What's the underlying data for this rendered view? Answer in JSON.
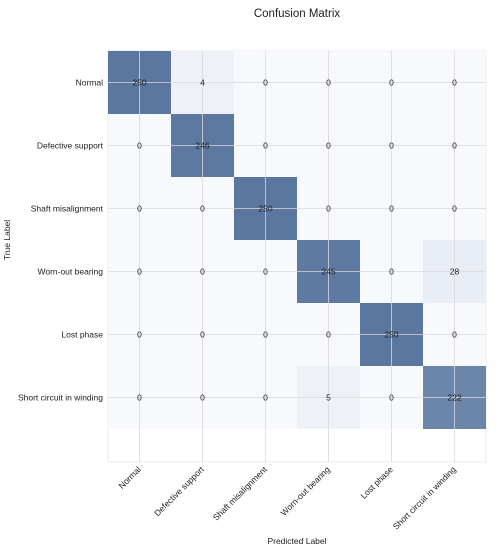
{
  "chart_data": {
    "type": "heatmap",
    "title": "Confusion Matrix",
    "xlabel": "Predicted Label",
    "ylabel": "True Label",
    "x_categories": [
      "Normal",
      "Defective support",
      "Shaft misalignment",
      "Worn-out bearing",
      "Lost phase",
      "Short circuit in winding"
    ],
    "y_categories": [
      "Normal",
      "Defective support",
      "Shaft misalignment",
      "Worn-out bearing",
      "Lost phase",
      "Short circuit in winding"
    ],
    "values": [
      [
        250,
        4,
        0,
        0,
        0,
        0
      ],
      [
        0,
        246,
        0,
        0,
        0,
        0
      ],
      [
        0,
        0,
        250,
        0,
        0,
        0
      ],
      [
        0,
        0,
        0,
        245,
        0,
        28
      ],
      [
        0,
        0,
        0,
        0,
        250,
        0
      ],
      [
        0,
        0,
        0,
        5,
        0,
        222
      ]
    ],
    "colormap": {
      "low": "#f7f9fd",
      "high": "#5b77a0",
      "mid_tint": "#e7eef9",
      "vmin": 0,
      "vmax": 250
    },
    "grid": true,
    "xtick_rotation_deg": 45
  }
}
